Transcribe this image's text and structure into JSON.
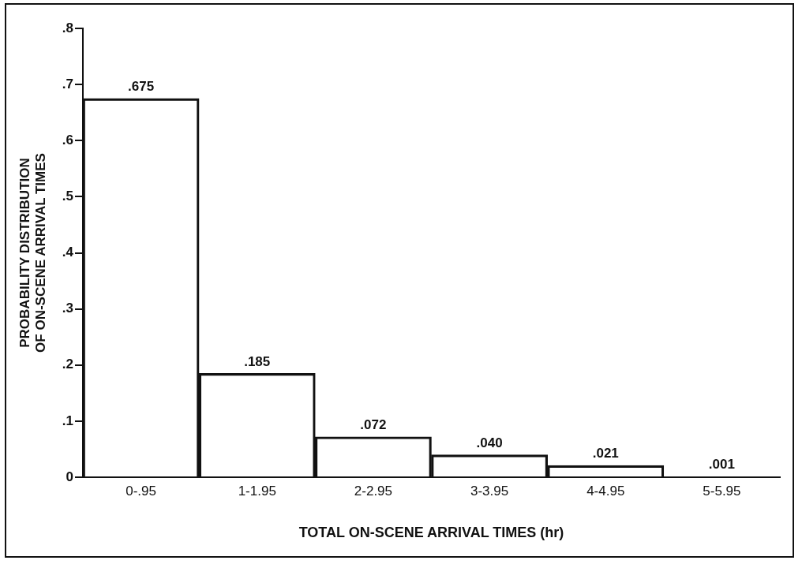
{
  "chart_data": {
    "type": "bar",
    "xlabel": "TOTAL ON-SCENE ARRIVAL TIMES (hr)",
    "ylabel": "PROBABILITY DISTRIBUTION\nOF ON-SCENE ARRIVAL TIMES",
    "categories": [
      "0-.95",
      "1-1.95",
      "2-2.95",
      "3-3.95",
      "4-4.95",
      "5-5.95"
    ],
    "values": [
      0.675,
      0.185,
      0.072,
      0.04,
      0.021,
      0.001
    ],
    "value_labels": [
      ".675",
      ".185",
      ".072",
      ".040",
      ".021",
      ".001"
    ],
    "color": "#111111",
    "ylim": [
      0,
      0.8
    ],
    "yticks": [
      0,
      {
        "value": 0.1,
        "label": ".1"
      },
      {
        "value": 0.2,
        "label": ".2"
      },
      {
        "value": 0.3,
        "label": ".3"
      },
      {
        "value": 0.4,
        "label": ".4"
      },
      {
        "value": 0.5,
        "label": ".5"
      },
      {
        "value": 0.6,
        "label": ".6"
      },
      {
        "value": 0.7,
        "label": ".7"
      },
      {
        "value": 0.8,
        "label": ".8"
      }
    ],
    "grid": false,
    "legend": false
  }
}
